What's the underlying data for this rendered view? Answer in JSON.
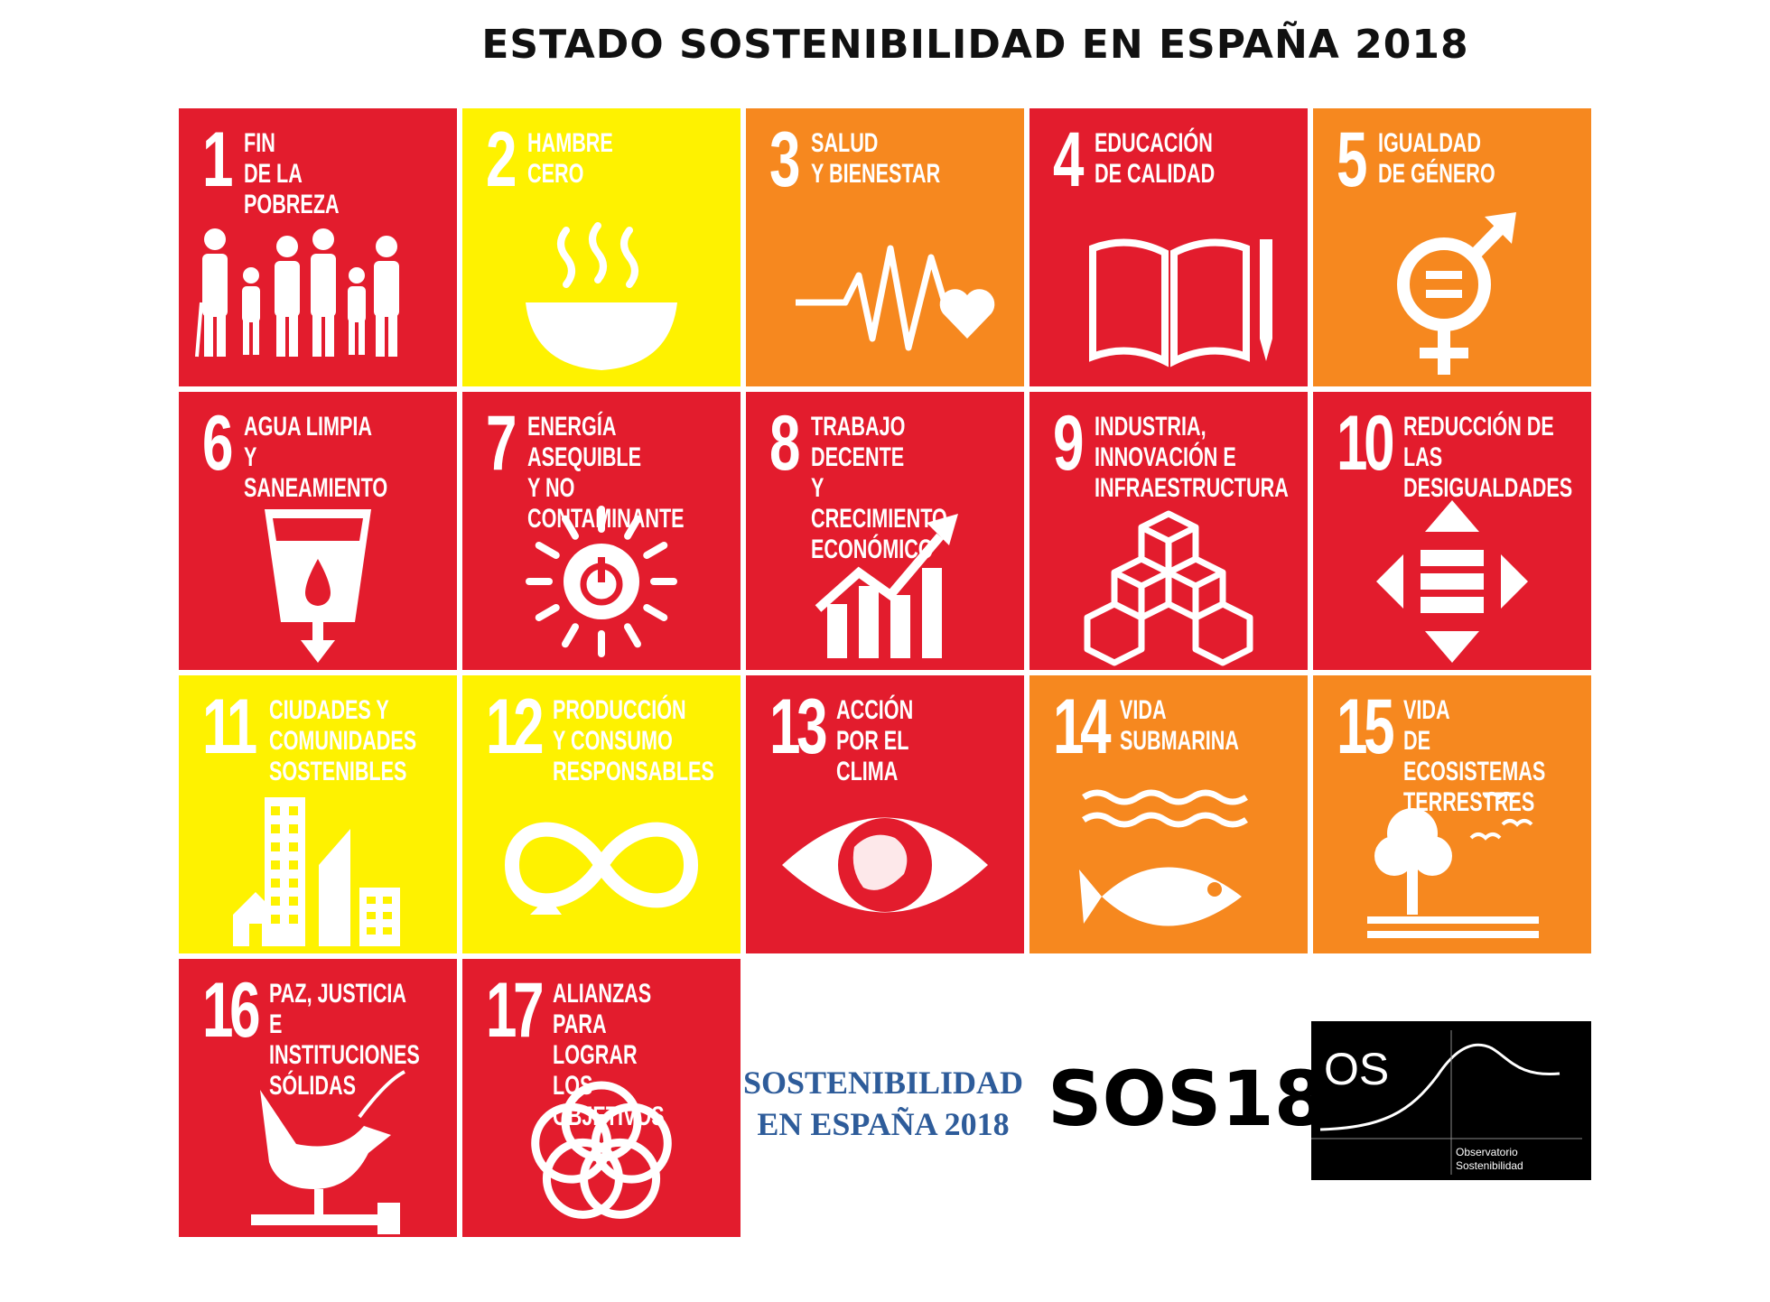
{
  "title": "ESTADO SOSTENIBILIDAD EN ESPAÑA 2018",
  "colors": {
    "red": "#e31c2d",
    "yellow": "#fef200",
    "orange": "#f6881f"
  },
  "goals": [
    {
      "number": "1",
      "label": "FIN\nDE LA POBREZA",
      "color": "#e31c2d",
      "icon": "family-icon"
    },
    {
      "number": "2",
      "label": "HAMBRE\nCERO",
      "color": "#fef200",
      "icon": "soup-bowl-icon"
    },
    {
      "number": "3",
      "label": "SALUD\nY BIENESTAR",
      "color": "#f6881f",
      "icon": "heartbeat-icon"
    },
    {
      "number": "4",
      "label": "EDUCACIÓN\nDE CALIDAD",
      "color": "#e31c2d",
      "icon": "book-pencil-icon"
    },
    {
      "number": "5",
      "label": "IGUALDAD\nDE GÉNERO",
      "color": "#f6881f",
      "icon": "gender-equality-icon"
    },
    {
      "number": "6",
      "label": "AGUA LIMPIA\nY SANEAMIENTO",
      "color": "#e31c2d",
      "icon": "water-glass-icon"
    },
    {
      "number": "7",
      "label": "ENERGÍA ASEQUIBLE\nY NO CONTAMINANTE",
      "color": "#e31c2d",
      "icon": "sun-power-icon"
    },
    {
      "number": "8",
      "label": "TRABAJO DECENTE\nY CRECIMIENTO\nECONÓMICO",
      "color": "#e31c2d",
      "icon": "growth-chart-icon"
    },
    {
      "number": "9",
      "label": "INDUSTRIA,\nINNOVACIÓN E\nINFRAESTRUCTURA",
      "color": "#e31c2d",
      "icon": "cubes-icon"
    },
    {
      "number": "10",
      "label": "REDUCCIÓN DE LAS\nDESIGUALDADES",
      "color": "#e31c2d",
      "icon": "equality-arrows-icon"
    },
    {
      "number": "11",
      "label": "CIUDADES Y\nCOMUNIDADES\nSOSTENIBLES",
      "color": "#fef200",
      "icon": "city-buildings-icon"
    },
    {
      "number": "12",
      "label": "PRODUCCIÓN\nY CONSUMO\nRESPONSABLES",
      "color": "#fef200",
      "icon": "infinity-loop-icon"
    },
    {
      "number": "13",
      "label": "ACCIÓN\nPOR EL CLIMA",
      "color": "#e31c2d",
      "icon": "earth-eye-icon"
    },
    {
      "number": "14",
      "label": "VIDA\nSUBMARINA",
      "color": "#f6881f",
      "icon": "fish-waves-icon"
    },
    {
      "number": "15",
      "label": "VIDA\nDE ECOSISTEMAS\nTERRESTRES",
      "color": "#f6881f",
      "icon": "tree-birds-icon"
    },
    {
      "number": "16",
      "label": "PAZ, JUSTICIA\nE INSTITUCIONES\nSÓLIDAS",
      "color": "#e31c2d",
      "icon": "dove-gavel-icon"
    },
    {
      "number": "17",
      "label": "ALIANZAS PARA\nLOGRAR\nLOS OBJETIVOS",
      "color": "#e31c2d",
      "icon": "partnership-rings-icon"
    }
  ],
  "footer": {
    "report_title": "SOSTENIBILIDAD\nEN ESPAÑA 2018",
    "code": "SOS18",
    "logo": {
      "initials": "OS",
      "name": "Observatorio\nSostenibilidad"
    }
  }
}
